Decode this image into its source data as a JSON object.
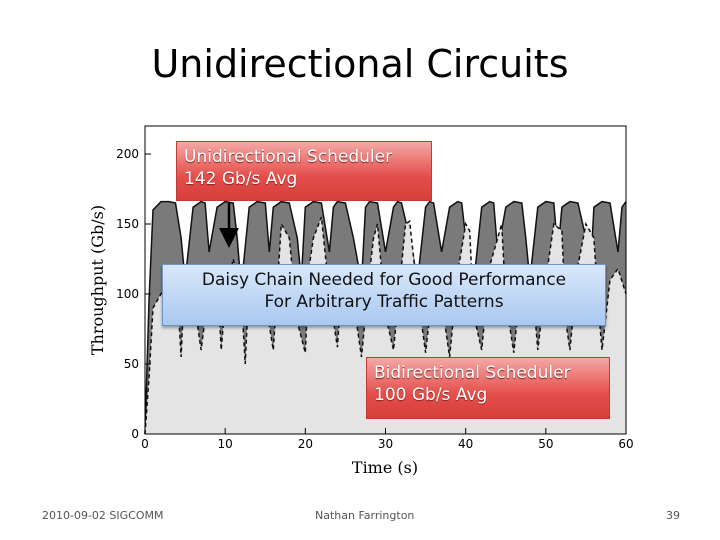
{
  "slide": {
    "title": "Unidirectional Circuits",
    "footer_left": "2010-09-02 SIGCOMM",
    "footer_center": "Nathan Farrington",
    "page_number": "39"
  },
  "callouts": {
    "unidirectional": [
      "Unidirectional Scheduler",
      "142 Gb/s Avg"
    ],
    "daisy": [
      "Daisy Chain Needed for Good Performance",
      "For Arbitrary Traffic Patterns"
    ],
    "bidirectional": [
      "Bidirectional Scheduler",
      "100 Gb/s Avg"
    ]
  },
  "colors": {
    "unidirectional": "#7a7a7a",
    "bidirectional": "#e4e4e4",
    "callout_red": "#e44e4a",
    "callout_blue": "#a9c8f0"
  },
  "chart_data": {
    "type": "area",
    "xlabel": "Time (s)",
    "ylabel": "Throughput (Gb/s)",
    "xlim": [
      0,
      60
    ],
    "ylim": [
      0,
      220
    ],
    "xticks": [
      0,
      10,
      20,
      30,
      40,
      50,
      60
    ],
    "yticks": [
      0,
      50,
      100,
      150,
      200
    ],
    "grid": false,
    "series": [
      {
        "x": [
          0,
          0.5,
          1,
          2,
          3,
          3.8,
          4.5,
          5,
          6,
          7,
          7.5,
          8,
          9,
          10,
          11,
          11.5,
          12,
          13,
          14,
          15,
          15.5,
          16,
          17,
          18,
          19,
          19.5,
          20,
          21,
          22,
          23,
          23.5,
          24,
          25,
          26,
          27,
          27.5,
          28,
          29,
          30,
          31,
          31.5,
          32,
          33,
          34,
          35,
          35.5,
          36,
          37,
          38,
          39,
          39.5,
          40,
          41,
          42,
          43,
          43.5,
          44,
          45,
          46,
          47,
          47.5,
          48,
          49,
          50,
          51,
          51.5,
          52,
          53,
          54,
          55,
          55.5,
          56,
          57,
          58,
          59,
          59.5,
          60
        ],
        "values": [
          0,
          95,
          160,
          166,
          166,
          165,
          140,
          110,
          162,
          166,
          165,
          130,
          162,
          166,
          165,
          140,
          105,
          162,
          166,
          165,
          130,
          162,
          166,
          165,
          140,
          110,
          162,
          166,
          165,
          130,
          162,
          166,
          165,
          140,
          108,
          162,
          166,
          165,
          130,
          162,
          166,
          165,
          140,
          110,
          162,
          166,
          165,
          130,
          162,
          166,
          165,
          140,
          108,
          162,
          166,
          165,
          130,
          162,
          166,
          165,
          140,
          110,
          162,
          166,
          165,
          130,
          162,
          166,
          165,
          140,
          108,
          162,
          166,
          165,
          130,
          162,
          166
        ]
      },
      {
        "x": [
          0,
          0.5,
          1,
          2,
          3,
          4,
          4.5,
          5,
          6,
          7,
          8,
          9,
          9.5,
          10,
          11,
          12,
          12.5,
          13,
          14,
          15,
          16,
          16.5,
          17,
          18,
          19,
          20,
          20.5,
          21,
          22,
          23,
          24,
          24.5,
          25,
          26,
          27,
          28,
          28.5,
          29,
          30,
          31,
          32,
          32.5,
          33,
          34,
          35,
          36,
          36.5,
          37,
          38,
          39,
          40,
          40.5,
          41,
          42,
          43,
          44,
          44.5,
          45,
          46,
          47,
          48,
          48.5,
          49,
          50,
          51,
          52,
          52.5,
          53,
          54,
          55,
          56,
          56.5,
          57,
          58,
          59,
          60
        ],
        "values": [
          0,
          40,
          90,
          100,
          110,
          105,
          55,
          120,
          100,
          60,
          105,
          115,
          60,
          95,
          125,
          100,
          50,
          110,
          115,
          95,
          60,
          105,
          150,
          140,
          80,
          58,
          120,
          140,
          155,
          100,
          62,
          105,
          118,
          95,
          55,
          115,
          140,
          150,
          85,
          60,
          120,
          150,
          152,
          100,
          58,
          110,
          120,
          95,
          55,
          115,
          150,
          145,
          85,
          60,
          120,
          140,
          150,
          95,
          58,
          115,
          120,
          95,
          60,
          110,
          150,
          145,
          80,
          60,
          120,
          150,
          140,
          95,
          60,
          110,
          118,
          100
        ]
      }
    ]
  }
}
